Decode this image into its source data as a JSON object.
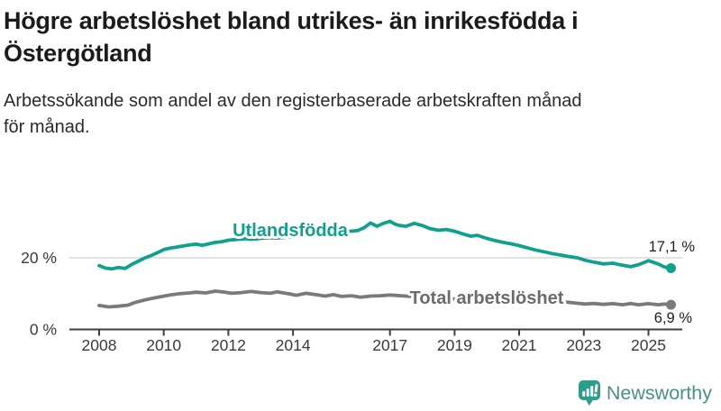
{
  "header": {
    "title_line1": "Högre arbetslöshet bland utrikes- än inrikesfödda i",
    "title_line2": "Östergötland",
    "subtitle_line1": "Arbetssökande som andel av den registerbaserade arbetskraften månad",
    "subtitle_line2": "för månad."
  },
  "chart_data": {
    "type": "line",
    "title": "Högre arbetslöshet bland utrikes- än inrikesfödda i Östergötland",
    "subtitle": "Arbetssökande som andel av den registerbaserade arbetskraften månad för månad.",
    "unit": "%",
    "xlim": [
      2007.75,
      2026.1
    ],
    "ylim": [
      0,
      33
    ],
    "grid": "single horizontal gridline at 20 %",
    "legend_position": "inline series labels on lines",
    "x_ticks": [
      {
        "value": 2008,
        "label": "2008"
      },
      {
        "value": 2010,
        "label": "2010"
      },
      {
        "value": 2012,
        "label": "2012"
      },
      {
        "value": 2014,
        "label": "2014"
      },
      {
        "value": 2017,
        "label": "2017"
      },
      {
        "value": 2019,
        "label": "2019"
      },
      {
        "value": 2021,
        "label": "2021"
      },
      {
        "value": 2023,
        "label": "2023"
      },
      {
        "value": 2025,
        "label": "2025"
      }
    ],
    "y_ticks": [
      {
        "value": 20,
        "label": "20 %"
      },
      {
        "value": 0,
        "label": "0 %"
      }
    ],
    "series": [
      {
        "name": "Utlandsfödda",
        "color": "#12a08e",
        "end_label": "17,1 %",
        "end_value": 17.1,
        "points": [
          [
            2008,
            17.8
          ],
          [
            2008.2,
            17.1
          ],
          [
            2008.4,
            16.9
          ],
          [
            2008.6,
            17.3
          ],
          [
            2008.8,
            17.0
          ],
          [
            2009,
            18.1
          ],
          [
            2009.2,
            19.0
          ],
          [
            2009.4,
            19.9
          ],
          [
            2009.6,
            20.6
          ],
          [
            2009.8,
            21.4
          ],
          [
            2010,
            22.3
          ],
          [
            2010.2,
            22.7
          ],
          [
            2010.4,
            23.0
          ],
          [
            2010.6,
            23.3
          ],
          [
            2010.8,
            23.6
          ],
          [
            2011,
            23.8
          ],
          [
            2011.2,
            23.5
          ],
          [
            2011.4,
            23.9
          ],
          [
            2011.6,
            24.3
          ],
          [
            2011.8,
            24.5
          ],
          [
            2012,
            24.9
          ],
          [
            2012.25,
            25.1
          ],
          [
            2012.5,
            25.3
          ],
          [
            2012.75,
            25.2
          ],
          [
            2013,
            25.4
          ],
          [
            2013.25,
            25.6
          ],
          [
            2013.5,
            25.5
          ],
          [
            2013.75,
            25.7
          ],
          [
            2014,
            25.9
          ],
          [
            2014.25,
            26.0
          ],
          [
            2014.5,
            26.2
          ],
          [
            2014.75,
            26.3
          ],
          [
            2015,
            26.5
          ],
          [
            2015.25,
            26.7
          ],
          [
            2015.5,
            27.0
          ],
          [
            2015.75,
            27.4
          ],
          [
            2016,
            27.6
          ],
          [
            2016.2,
            28.4
          ],
          [
            2016.4,
            29.7
          ],
          [
            2016.6,
            28.8
          ],
          [
            2016.8,
            29.6
          ],
          [
            2017,
            30.2
          ],
          [
            2017.15,
            29.4
          ],
          [
            2017.3,
            29.0
          ],
          [
            2017.5,
            28.8
          ],
          [
            2017.75,
            29.6
          ],
          [
            2018,
            29.0
          ],
          [
            2018.25,
            28.1
          ],
          [
            2018.5,
            27.7
          ],
          [
            2018.75,
            27.9
          ],
          [
            2019,
            27.4
          ],
          [
            2019.25,
            26.7
          ],
          [
            2019.5,
            26.0
          ],
          [
            2019.7,
            26.3
          ],
          [
            2020,
            25.4
          ],
          [
            2020.25,
            24.8
          ],
          [
            2020.5,
            24.3
          ],
          [
            2020.75,
            23.9
          ],
          [
            2021,
            23.4
          ],
          [
            2021.25,
            22.8
          ],
          [
            2021.5,
            22.2
          ],
          [
            2021.75,
            21.7
          ],
          [
            2022,
            21.2
          ],
          [
            2022.25,
            20.8
          ],
          [
            2022.5,
            20.4
          ],
          [
            2022.8,
            20.0
          ],
          [
            2023.05,
            19.3
          ],
          [
            2023.3,
            18.8
          ],
          [
            2023.6,
            18.3
          ],
          [
            2023.9,
            18.5
          ],
          [
            2024.2,
            17.9
          ],
          [
            2024.45,
            17.5
          ],
          [
            2024.7,
            18.1
          ],
          [
            2025,
            19.2
          ],
          [
            2025.3,
            18.3
          ],
          [
            2025.5,
            17.4
          ],
          [
            2025.7,
            17.1
          ]
        ]
      },
      {
        "name": "Total arbetslöshet",
        "color": "#7a7a7a",
        "end_label": "6,9 %",
        "end_value": 6.9,
        "points": [
          [
            2008,
            6.7
          ],
          [
            2008.3,
            6.3
          ],
          [
            2008.6,
            6.5
          ],
          [
            2008.9,
            6.8
          ],
          [
            2009.1,
            7.5
          ],
          [
            2009.4,
            8.2
          ],
          [
            2009.6,
            8.6
          ],
          [
            2009.9,
            9.1
          ],
          [
            2010.2,
            9.6
          ],
          [
            2010.5,
            10.0
          ],
          [
            2010.8,
            10.2
          ],
          [
            2011,
            10.4
          ],
          [
            2011.3,
            10.2
          ],
          [
            2011.6,
            10.7
          ],
          [
            2011.9,
            10.4
          ],
          [
            2012.1,
            10.1
          ],
          [
            2012.4,
            10.3
          ],
          [
            2012.7,
            10.6
          ],
          [
            2013,
            10.3
          ],
          [
            2013.3,
            10.1
          ],
          [
            2013.5,
            10.5
          ],
          [
            2013.9,
            9.9
          ],
          [
            2014.1,
            9.5
          ],
          [
            2014.4,
            10.1
          ],
          [
            2014.7,
            9.7
          ],
          [
            2015,
            9.3
          ],
          [
            2015.25,
            9.7
          ],
          [
            2015.5,
            9.2
          ],
          [
            2015.8,
            9.4
          ],
          [
            2016.1,
            9.0
          ],
          [
            2016.4,
            9.3
          ],
          [
            2016.7,
            9.4
          ],
          [
            2017,
            9.6
          ],
          [
            2017.5,
            9.3
          ],
          [
            2018,
            9.0
          ],
          [
            2018.5,
            8.7
          ],
          [
            2019,
            8.5
          ],
          [
            2019.5,
            8.4
          ],
          [
            2020,
            8.8
          ],
          [
            2020.3,
            9.8
          ],
          [
            2020.6,
            9.6
          ],
          [
            2021,
            9.3
          ],
          [
            2021.5,
            8.8
          ],
          [
            2022,
            8.2
          ],
          [
            2022.4,
            7.7
          ],
          [
            2022.8,
            7.3
          ],
          [
            2023.05,
            7.1
          ],
          [
            2023.3,
            7.25
          ],
          [
            2023.6,
            7.0
          ],
          [
            2023.9,
            7.2
          ],
          [
            2024.2,
            6.9
          ],
          [
            2024.45,
            7.25
          ],
          [
            2024.7,
            6.9
          ],
          [
            2025,
            7.2
          ],
          [
            2025.3,
            6.9
          ],
          [
            2025.5,
            7.1
          ],
          [
            2025.7,
            6.9
          ]
        ]
      }
    ]
  },
  "branding": {
    "logo_text": "Newsworthy",
    "logo_icon": "speech-bubble with white bar chart and exclamation mark",
    "icon_color": "#2f9c8c",
    "text_color": "#4a9181"
  }
}
